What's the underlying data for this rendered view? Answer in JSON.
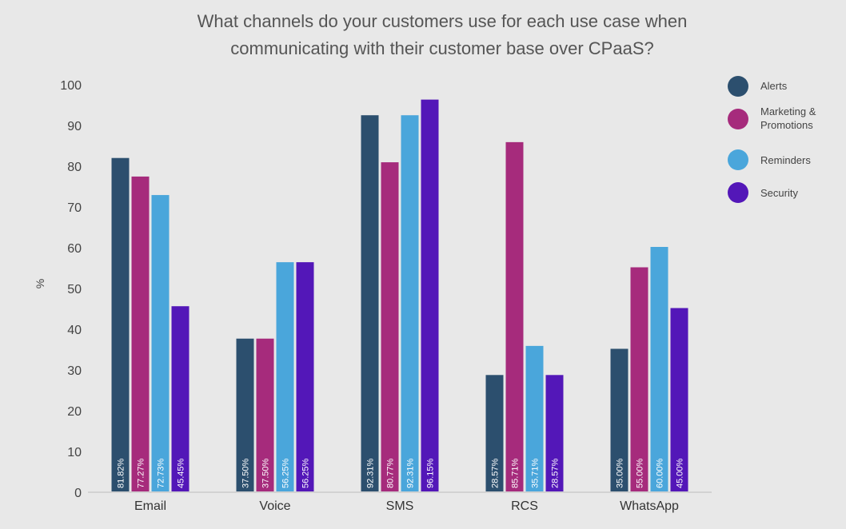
{
  "chart_data": {
    "type": "bar",
    "title_lines": [
      "What channels do your customers use for each use case when",
      "communicating with their customer base over CPaaS?"
    ],
    "ylabel": "%",
    "xlabel": "",
    "ylim": [
      0,
      100
    ],
    "yticks": [
      "0",
      "10",
      "20",
      "30",
      "40",
      "50",
      "60",
      "70",
      "80",
      "90",
      "100"
    ],
    "categories": [
      "Email",
      "Voice",
      "SMS",
      "RCS",
      "WhatsApp"
    ],
    "grid": false,
    "legend_position": "right",
    "series": [
      {
        "name": "Alerts",
        "color": "#2c4f6e",
        "values": [
          81.82,
          37.5,
          92.31,
          28.57,
          35.0
        ],
        "labels": [
          "81.82%",
          "37.50%",
          "92.31%",
          "28.57%",
          "35.00%"
        ]
      },
      {
        "name": "Marketing & Promotions",
        "color": "#a62b7c",
        "values": [
          77.27,
          37.5,
          80.77,
          85.71,
          55.0
        ],
        "labels": [
          "77.27%",
          "37.50%",
          "80.77%",
          "85.71%",
          "55.00%"
        ]
      },
      {
        "name": "Reminders",
        "color": "#4aa6db",
        "values": [
          72.73,
          56.25,
          92.31,
          35.71,
          60.0
        ],
        "labels": [
          "72.73%",
          "56.25%",
          "92.31%",
          "35.71%",
          "60.00%"
        ]
      },
      {
        "name": "Security",
        "color": "#5317b8",
        "values": [
          45.45,
          56.25,
          96.15,
          28.57,
          45.0
        ],
        "labels": [
          "45.45%",
          "56.25%",
          "96.15%",
          "28.57%",
          "45.00%"
        ]
      }
    ]
  },
  "legend": {
    "items": [
      {
        "lines": [
          "Alerts"
        ]
      },
      {
        "lines": [
          "Marketing &",
          "Promotions"
        ]
      },
      {
        "lines": [
          "Reminders"
        ]
      },
      {
        "lines": [
          "Security"
        ]
      }
    ]
  }
}
